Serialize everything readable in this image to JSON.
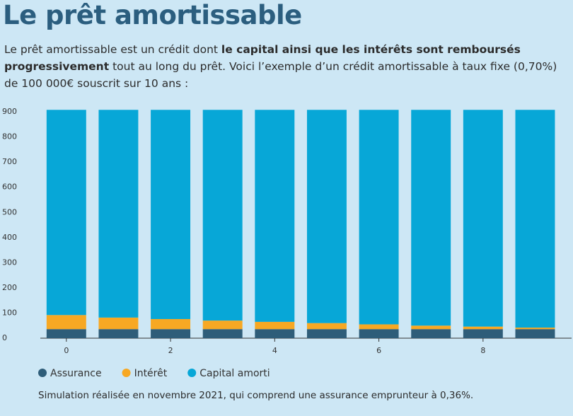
{
  "header": {
    "title": "Le prêt amortissable",
    "intro": [
      {
        "text": "Le prêt amortissable est un crédit dont ",
        "bold": false
      },
      {
        "text": "le capital ainsi que les intérêts sont remboursés progressivement",
        "bold": true
      },
      {
        "text": " tout au long du prêt. Voici l’exemple d’un crédit amortissable à taux fixe (0,70%) de 100 000€ souscrit sur 10 ans :",
        "bold": false
      }
    ]
  },
  "chart_data": {
    "type": "stacked_bar",
    "x": [
      0,
      1,
      2,
      3,
      4,
      5,
      6,
      7,
      8,
      9
    ],
    "series": [
      {
        "name": "Assurance",
        "color": "#2e5d79",
        "values": [
          36,
          36,
          36,
          36,
          36,
          36,
          36,
          36,
          36,
          36
        ]
      },
      {
        "name": "Intérêt",
        "color": "#f7a823",
        "values": [
          56,
          46,
          40,
          34,
          29,
          24,
          19,
          14,
          10,
          6
        ]
      },
      {
        "name": "Capital amorti",
        "color": "#07a7d7",
        "values": [
          816,
          826,
          832,
          838,
          843,
          848,
          853,
          858,
          862,
          866
        ]
      }
    ],
    "xlim": [
      -0.5,
      9.7
    ],
    "xticks": [
      0,
      2,
      4,
      6,
      8
    ],
    "ylim": [
      0,
      920
    ],
    "yticks": [
      0,
      100,
      200,
      300,
      400,
      500,
      600,
      700,
      800,
      900
    ]
  },
  "footnote": "Simulation réalisée en novembre 2021, qui comprend une assurance emprunteur à 0,36%."
}
